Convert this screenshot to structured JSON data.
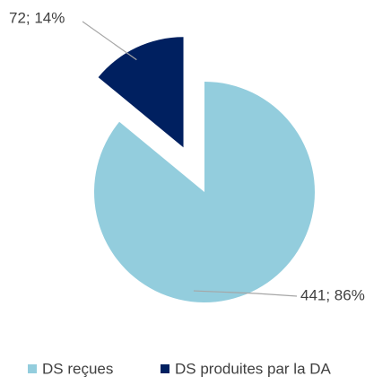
{
  "chart_data": {
    "type": "pie",
    "categories": [
      "DS reçues",
      "DS produites par la DA"
    ],
    "values": [
      441,
      72
    ],
    "value_labels": [
      "441; 86%",
      "72; 14%"
    ],
    "colors": [
      "#93cddd",
      "#002060"
    ],
    "explode": [
      false,
      true
    ],
    "legend": "bottom"
  }
}
